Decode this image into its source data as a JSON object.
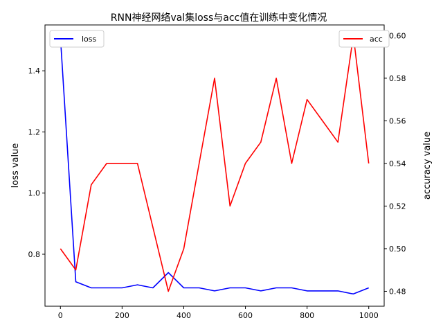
{
  "chart_data": {
    "type": "line",
    "title": "RNN神经网络val集loss与acc值在训练中变化情况",
    "xlabel": "",
    "ylabel_left": "loss value",
    "ylabel_right": "accuracy value",
    "x": [
      0,
      50,
      100,
      150,
      200,
      250,
      300,
      350,
      400,
      450,
      500,
      550,
      600,
      650,
      700,
      750,
      800,
      850,
      900,
      950,
      1000
    ],
    "xlim": [
      -50,
      1050
    ],
    "xticks": [
      "0",
      "200",
      "400",
      "600",
      "800",
      "1000"
    ],
    "ylim_left": [
      0.63,
      1.55
    ],
    "yticks_left": [
      "0.8",
      "1.0",
      "1.2",
      "1.4"
    ],
    "ylim_right": [
      0.473,
      0.605
    ],
    "yticks_right": [
      "0.48",
      "0.50",
      "0.52",
      "0.54",
      "0.56",
      "0.58",
      "0.60"
    ],
    "grid": false,
    "series": [
      {
        "name": "loss",
        "axis": "left",
        "color": "#0000ff",
        "values": [
          1.51,
          0.71,
          0.69,
          0.69,
          0.69,
          0.7,
          0.69,
          0.74,
          0.69,
          0.69,
          0.68,
          0.69,
          0.69,
          0.68,
          0.69,
          0.69,
          0.68,
          0.68,
          0.68,
          0.67,
          0.69
        ],
        "legend_position": "top-left"
      },
      {
        "name": "acc",
        "axis": "right",
        "color": "#ff0000",
        "values": [
          0.5,
          0.49,
          0.53,
          0.54,
          0.54,
          0.54,
          0.51,
          0.48,
          0.5,
          0.54,
          0.58,
          0.52,
          0.54,
          0.55,
          0.58,
          0.54,
          0.57,
          0.56,
          0.55,
          0.6,
          0.54
        ],
        "legend_position": "top-right"
      }
    ]
  }
}
